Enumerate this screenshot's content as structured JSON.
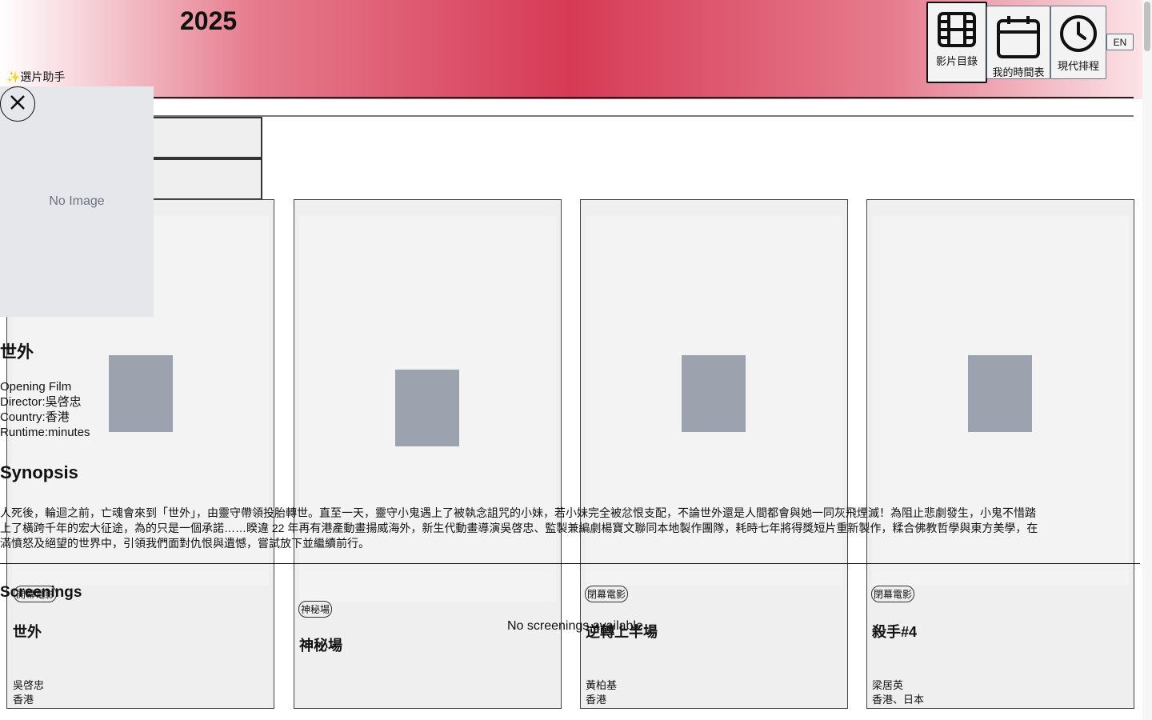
{
  "header": {
    "year": "2025",
    "assistant_label": "✨選片助手",
    "nav": [
      {
        "label": "影片目錄",
        "icon": "film-icon",
        "active": true
      },
      {
        "label": "我的時間表",
        "icon": "calendar-icon",
        "active": false
      },
      {
        "label": "現代排程",
        "icon": "clock-icon",
        "active": false
      }
    ],
    "lang_button": "EN"
  },
  "cards": [
    {
      "badge": "開幕電影",
      "title": "世外",
      "director": "吳啓忠",
      "country": "香港"
    },
    {
      "badge": "神秘場",
      "title": "神秘場",
      "director": "",
      "country": ""
    },
    {
      "badge": "閉幕電影",
      "title": "逆轉上半場",
      "director": "黃柏基",
      "country": "香港"
    },
    {
      "badge": "閉幕電影",
      "title": "殺手#4",
      "director": "梁居英",
      "country": "香港、日本"
    }
  ],
  "modal": {
    "image_placeholder": "No Image",
    "title": "世外",
    "category": "Opening Film",
    "director_line": "Director:吳啓忠",
    "country_line": "Country:香港",
    "runtime_line": "Runtime:minutes",
    "synopsis_heading": "Synopsis",
    "synopsis_lines": [
      "人死後，輪迴之前，亡魂會來到「世外」，由靈守帶領投胎轉世。直至一天，靈守小鬼遇上了被執念詛咒的小妹，若小妹完全被忿恨支配，不論世外還是人間都會與她一同灰飛煙滅！為阻止悲劇發生，小鬼不惜踏",
      "上了橫跨千年的宏大征途，為的只是一個承諾……睽違 22 年再有港產動畫揚威海外，新生代動畫導演吳啓忠、監製兼編劇楊寶文聯同本地製作團隊，耗時七年將得獎短片重新製作，糅合佛教哲學與東方美學，在",
      "滿憤怒及絕望的世界中，引領我們面對仇恨與遺憾，嘗試放下並繼續前行。"
    ],
    "screenings_heading": "Screenings",
    "no_screenings": "No screenings available"
  }
}
